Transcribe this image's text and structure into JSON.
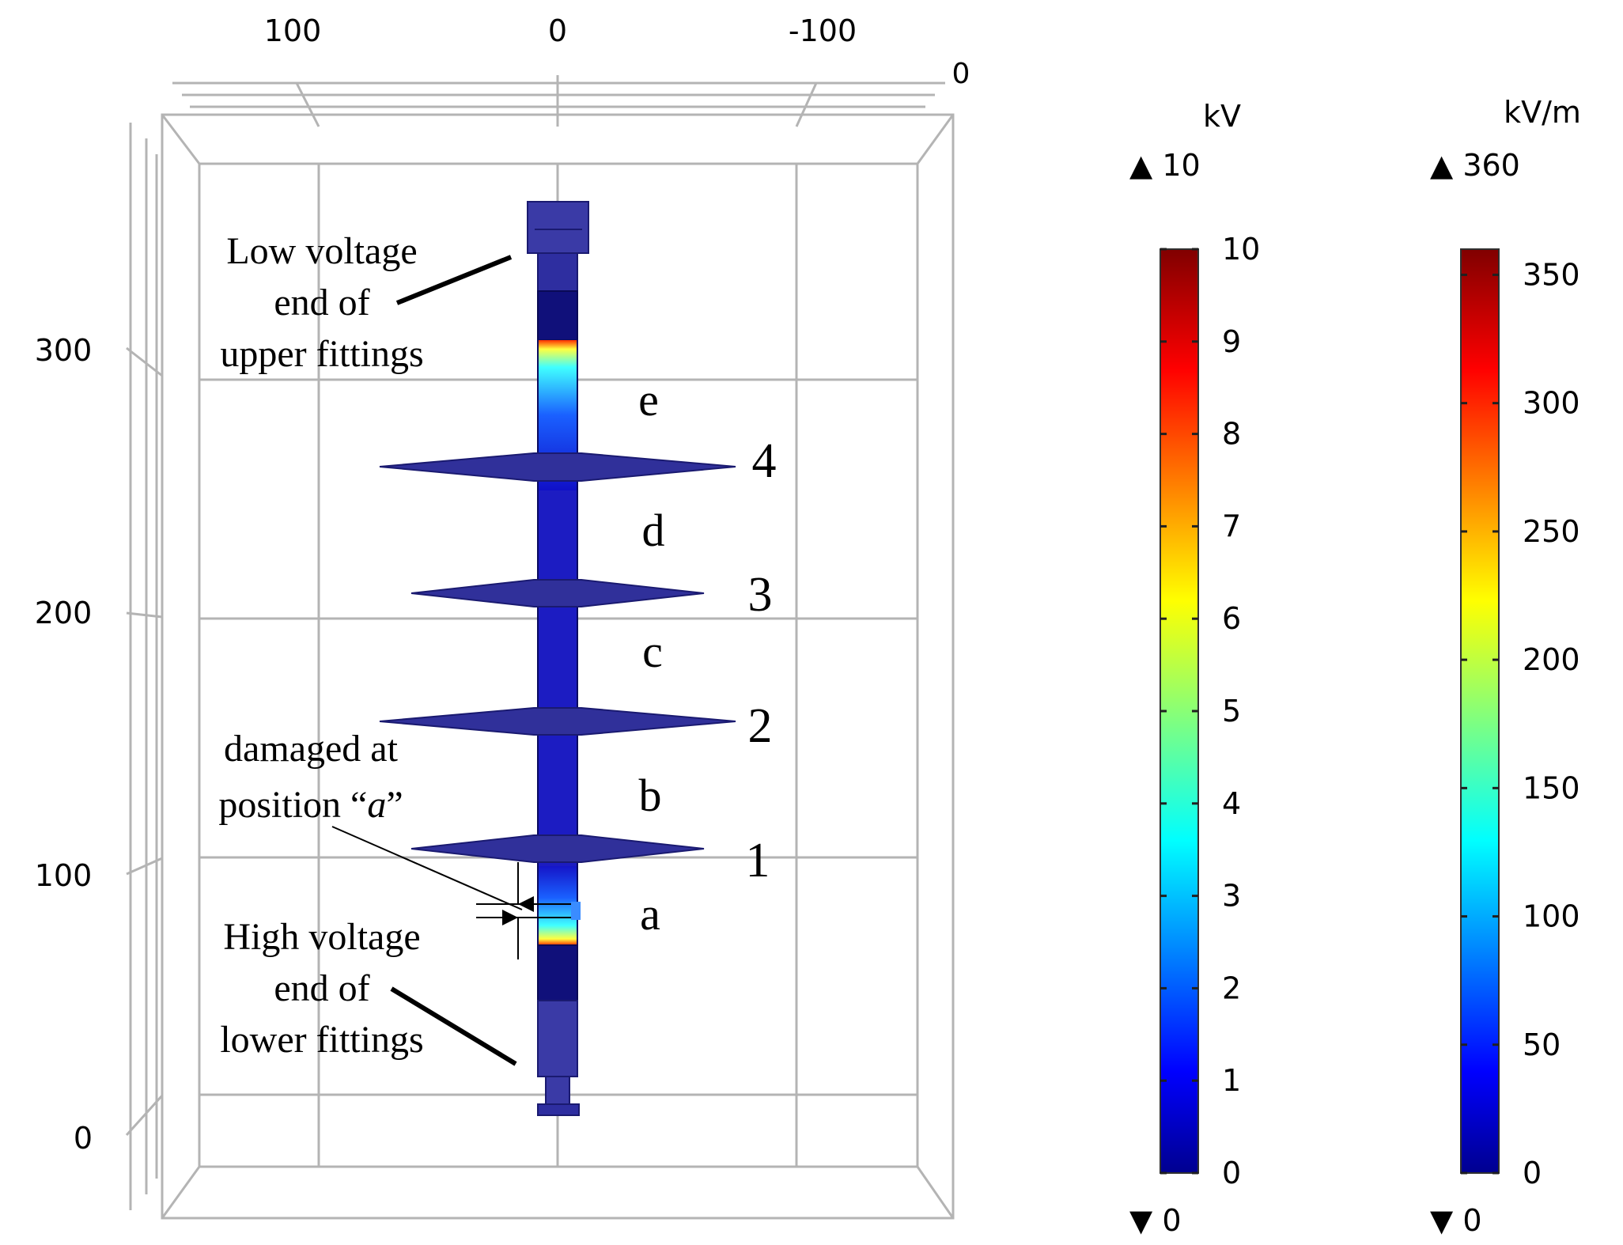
{
  "top_axis": {
    "ticks": [
      "100",
      "0",
      "-100"
    ],
    "corner": "0"
  },
  "left_axis": {
    "ticks": [
      "300",
      "200",
      "100",
      "0"
    ]
  },
  "annotations": {
    "low_voltage": [
      "Low voltage",
      "end of",
      "upper fittings"
    ],
    "damaged": [
      "damaged at",
      "position “",
      "a",
      "”"
    ],
    "high_voltage": [
      "High voltage",
      "end of",
      "lower fittings"
    ]
  },
  "segments": [
    "e",
    "d",
    "c",
    "b",
    "a"
  ],
  "sheds": [
    "4",
    "3",
    "2",
    "1"
  ],
  "colorbars": [
    {
      "unit": "kV",
      "max_label": "10",
      "min_label": "0",
      "ticks": [
        "10",
        "9",
        "8",
        "7",
        "6",
        "5",
        "4",
        "3",
        "2",
        "1",
        "0"
      ],
      "max": 10,
      "min": 0
    },
    {
      "unit": "kV/m",
      "max_label": "360",
      "min_label": "0",
      "ticks": [
        "350",
        "300",
        "250",
        "200",
        "150",
        "100",
        "50",
        "0"
      ],
      "max": 360,
      "min": 0
    }
  ],
  "colormap": [
    "#00008f",
    "#0000ff",
    "#00ffff",
    "#ffff00",
    "#ff0000",
    "#800000"
  ],
  "colors": {
    "insulator": "#2828b4",
    "grid": "#b4b4b4"
  }
}
